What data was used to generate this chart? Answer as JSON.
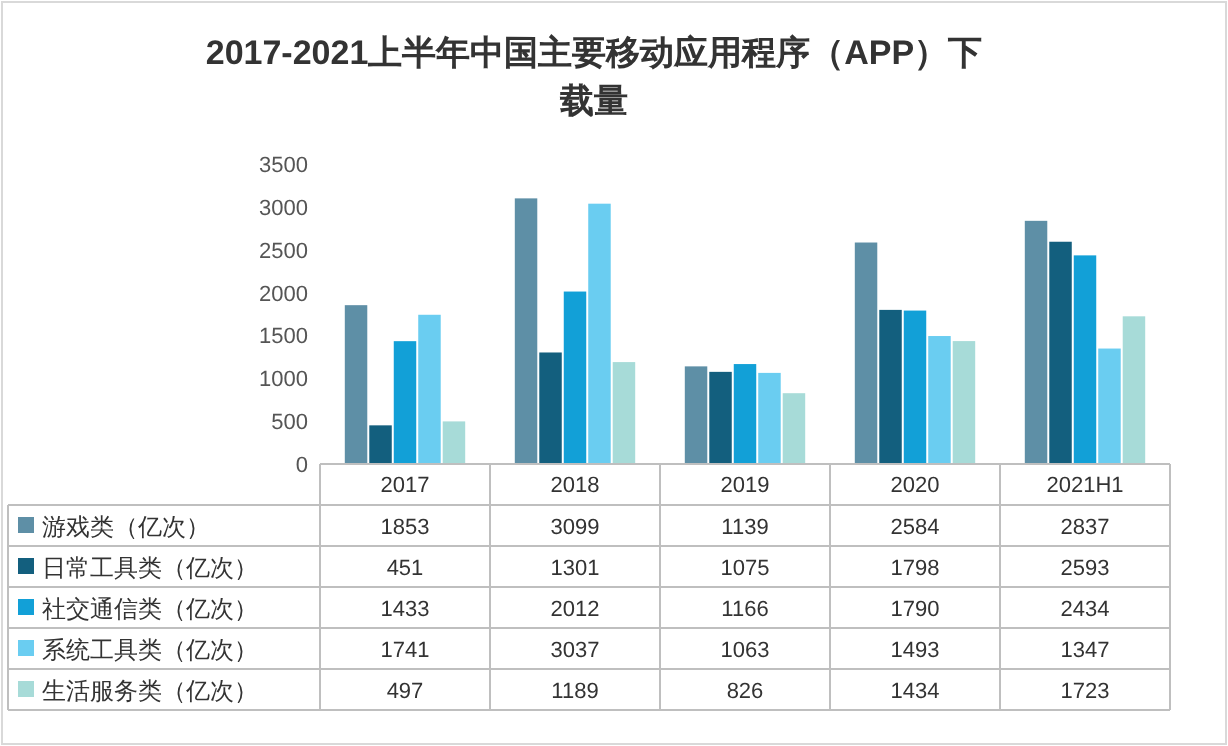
{
  "chart_data": {
    "type": "bar",
    "title": "2017-2021上半年中国主要移动应用程序（APP）下载量",
    "legend": "left",
    "categories": [
      "2017",
      "2018",
      "2019",
      "2020",
      "2021H1"
    ],
    "series": [
      {
        "name": "游戏类（亿次）",
        "color": "#5e8fa6",
        "values": [
          1853,
          3099,
          1139,
          2584,
          2837
        ]
      },
      {
        "name": "日常工具类（亿次）",
        "color": "#135f7e",
        "values": [
          451,
          1301,
          1075,
          1798,
          2593
        ]
      },
      {
        "name": "社交通信类（亿次）",
        "color": "#12a0d7",
        "values": [
          1433,
          2012,
          1166,
          1790,
          2434
        ]
      },
      {
        "name": "系统工具类（亿次）",
        "color": "#6acdf1",
        "values": [
          1741,
          3037,
          1063,
          1493,
          1347
        ]
      },
      {
        "name": "生活服务类（亿次）",
        "color": "#a7dbd8",
        "values": [
          497,
          1189,
          826,
          1434,
          1723
        ]
      }
    ],
    "ylim": [
      0,
      3500
    ],
    "yticks": [
      0,
      500,
      1000,
      1500,
      2000,
      2500,
      3000,
      3500
    ],
    "grid": false,
    "data_labels": true
  }
}
